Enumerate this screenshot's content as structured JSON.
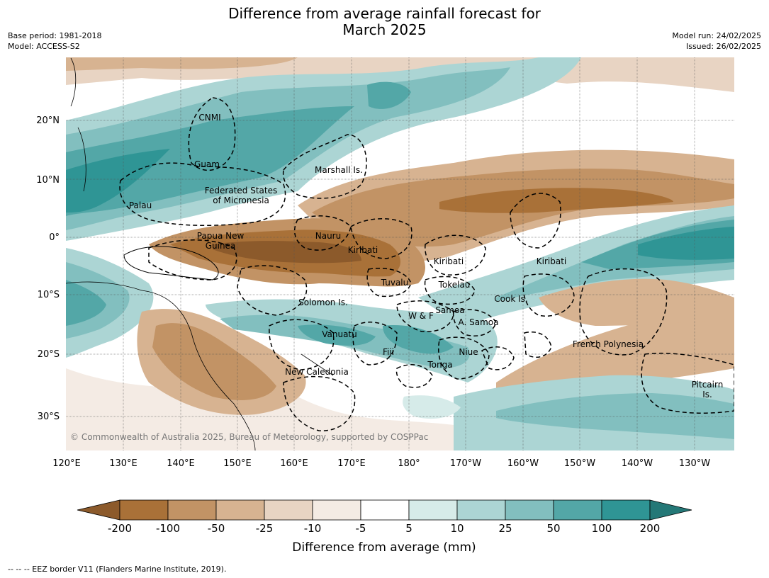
{
  "title_line1": "Difference from average rainfall forecast for",
  "title_line2": "March 2025",
  "base_period": "Base period: 1981-2018",
  "model": "Model: ACCESS-S2",
  "model_run": "Model run: 24/02/2025",
  "issued": "Issued: 26/02/2025",
  "lon_labels": [
    "120°E",
    "130°E",
    "140°E",
    "150°E",
    "160°E",
    "170°E",
    "180°",
    "170°W",
    "160°W",
    "150°W",
    "140°W",
    "130°W"
  ],
  "lat_labels": [
    "20°N",
    "10°N",
    "0°",
    "10°S",
    "20°S",
    "30°S"
  ],
  "region_labels": {
    "cnmi": "CNMI",
    "guam": "Guam",
    "marshall": "Marshall Is.",
    "fsm1": "Federated States",
    "fsm2": "of Micronesia",
    "palau": "Palau",
    "png1": "Papua New",
    "png2": "Guinea",
    "nauru": "Nauru",
    "kiribati_w": "Kiribati",
    "kiribati_c": "Kiribati",
    "kiribati_e": "Kiribati",
    "tuvalu": "Tuvalu",
    "tokelau": "Tokelau",
    "cook": "Cook Is.",
    "solomon": "Solomon Is.",
    "wf": "W & F",
    "samoa": "Samoa",
    "asamoa": "A. Samoa",
    "vanuatu": "Vanuatu",
    "fiji": "Fiji",
    "niue": "Niue",
    "tonga": "Tonga",
    "frpoly": "French Polynesia",
    "newcal": "New Caledonia",
    "pitcairn1": "Pitcairn",
    "pitcairn2": "Is."
  },
  "copyright": "© Commonwealth of Australia 2025, Bureau of Meteorology, supported by COSPPac",
  "colorbar": {
    "ticks": [
      "-200",
      "-100",
      "-50",
      "-25",
      "-10",
      "-5",
      "5",
      "10",
      "25",
      "50",
      "100",
      "200"
    ],
    "colors": [
      "#8c5a2b",
      "#a97138",
      "#c29365",
      "#d7b391",
      "#e8d4c3",
      "#f4ebe4",
      "#ffffff",
      "#d6ebe9",
      "#acd5d4",
      "#82bfbf",
      "#53a7a7",
      "#2f9595",
      "#247877"
    ],
    "title": "Difference from average (mm)"
  },
  "footer": "--  --  -- EEZ border V11 (Flanders Marine Institute, 2019)."
}
